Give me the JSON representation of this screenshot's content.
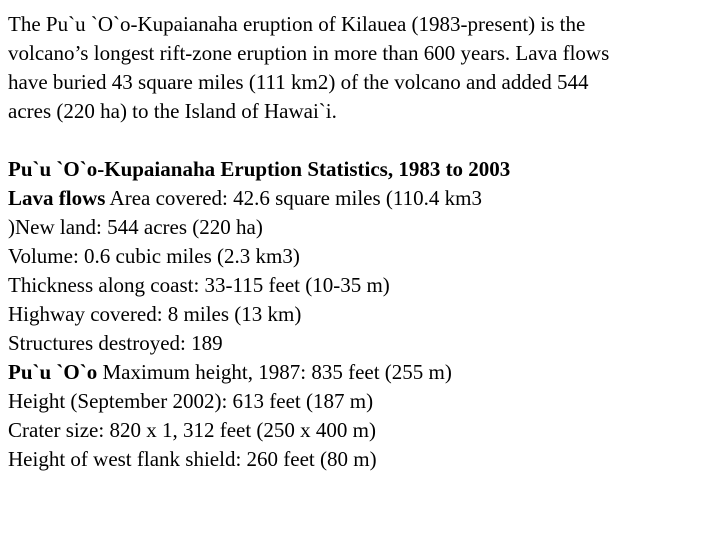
{
  "intro": {
    "line1": "The Pu`u `O`o-Kupaianaha eruption of Kilauea (1983-present) is the",
    "line2": "volcano’s longest rift-zone eruption in more than 600 years. Lava flows",
    "line3": "have buried 43 square miles (111 km2) of the volcano and added 544",
    "line4": "acres (220 ha) to the Island of Hawai`i."
  },
  "stats": {
    "heading": "Pu`u `O`o-Kupaianaha Eruption Statistics, 1983 to 2003",
    "lava_label": "Lava flows",
    "lava_area": " Area covered: 42.6 square miles (110.4 km3",
    "new_land": ")New land: 544 acres (220 ha)",
    "volume": "Volume: 0.6 cubic miles (2.3 km3)",
    "thickness": "Thickness along coast: 33-115 feet (10-35 m)",
    "highway": "Highway covered: 8 miles (13 km)",
    "structures": "Structures destroyed: 189",
    "puuoo_label": "Pu`u `O`o",
    "max_height": " Maximum height, 1987: 835 feet (255 m)",
    "height_2002": "Height (September 2002): 613 feet (187 m)",
    "crater": "Crater size: 820 x 1, 312 feet (250 x 400 m)",
    "west_flank": "Height of west flank shield: 260 feet (80 m)"
  }
}
